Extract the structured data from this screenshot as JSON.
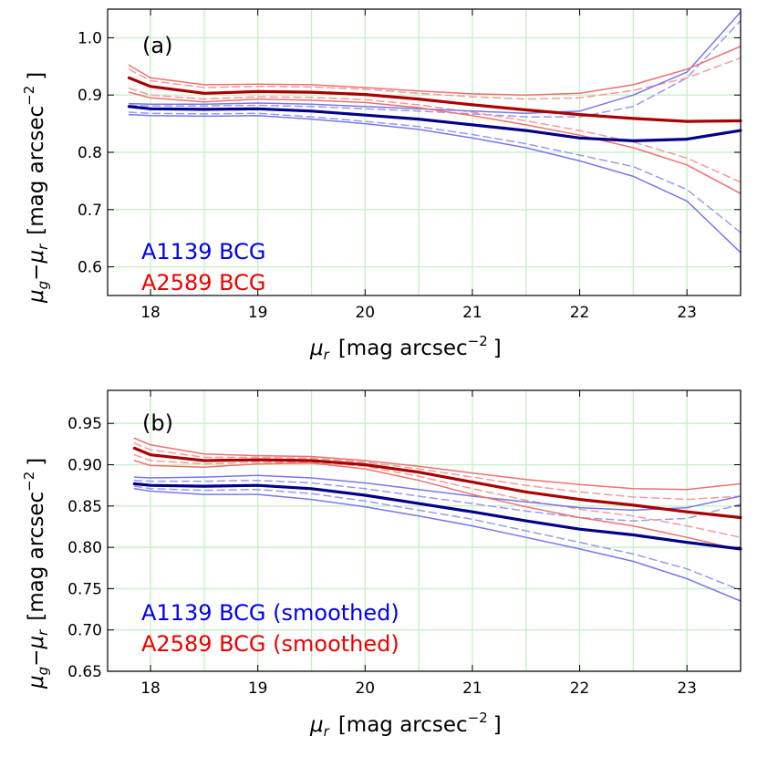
{
  "figure": {
    "charts": [
      {
        "panel_label": "(a)",
        "xlabel_math": "μ",
        "xlabel_sub": "r",
        "xlabel_text": "[mag arcsec",
        "xlabel_exp": "−2",
        "xlabel_close": "]",
        "ylabel_math_1": "μ",
        "ylabel_sub_1": "g",
        "ylabel_minus": "−",
        "ylabel_math_2": "μ",
        "ylabel_sub_2": "r",
        "ylabel_text": "[mag arcsec",
        "ylabel_exp": "−2",
        "ylabel_close": "]",
        "legend": [
          {
            "label": "A1139 BCG",
            "color": "#0000ee"
          },
          {
            "label": "A2589 BCG",
            "color": "#ee0000"
          }
        ]
      },
      {
        "panel_label": "(b)",
        "xlabel_math": "μ",
        "xlabel_sub": "r",
        "xlabel_text": "[mag arcsec",
        "xlabel_exp": "−2",
        "xlabel_close": "]",
        "ylabel_math_1": "μ",
        "ylabel_sub_1": "g",
        "ylabel_minus": "−",
        "ylabel_math_2": "μ",
        "ylabel_sub_2": "r",
        "ylabel_text": "[mag arcsec",
        "ylabel_exp": "−2",
        "ylabel_close": "]",
        "legend": [
          {
            "label": "A1139 BCG (smoothed)",
            "color": "#0000ee"
          },
          {
            "label": "A2589 BCG (smoothed)",
            "color": "#ee0000"
          }
        ]
      }
    ]
  },
  "chart_data": [
    {
      "type": "line",
      "title": "",
      "panel_label": "(a)",
      "xlabel": "μ_r [mag arcsec^-2]",
      "ylabel": "μ_g − μ_r [mag arcsec^-2]",
      "xlim": [
        17.6,
        23.5
      ],
      "ylim": [
        0.55,
        1.05
      ],
      "xticks": [
        18,
        19,
        20,
        21,
        22,
        23
      ],
      "yticks": [
        0.6,
        0.7,
        0.8,
        0.9,
        1.0
      ],
      "xtick_labels": [
        "18",
        "19",
        "20",
        "21",
        "22",
        "23"
      ],
      "ytick_labels": [
        "0.6",
        "0.7",
        "0.8",
        "0.9",
        "1.0"
      ],
      "grid": true,
      "legend_position": "lower-left",
      "series": [
        {
          "name": "A1139 BCG",
          "role": "main",
          "color": "#00008b",
          "style": "solid",
          "x": [
            17.8,
            18.0,
            18.5,
            19.0,
            19.5,
            20.0,
            20.5,
            21.0,
            21.5,
            22.0,
            22.5,
            23.0,
            23.5
          ],
          "y": [
            0.88,
            0.876,
            0.875,
            0.876,
            0.872,
            0.865,
            0.858,
            0.848,
            0.838,
            0.825,
            0.82,
            0.823,
            0.838
          ]
        },
        {
          "name": "A1139 BCG upper",
          "role": "band",
          "color": "#7777ee",
          "style": "solid",
          "x": [
            17.8,
            18.0,
            18.5,
            19.0,
            19.5,
            20.0,
            20.5,
            21.0,
            21.5,
            22.0,
            22.5,
            23.0,
            23.5
          ],
          "y": [
            0.885,
            0.884,
            0.884,
            0.886,
            0.884,
            0.88,
            0.876,
            0.872,
            0.868,
            0.872,
            0.9,
            0.94,
            1.045
          ]
        },
        {
          "name": "A1139 BCG lower",
          "role": "band",
          "color": "#7777ee",
          "style": "solid",
          "x": [
            17.8,
            18.0,
            18.5,
            19.0,
            19.5,
            20.0,
            20.5,
            21.0,
            21.5,
            22.0,
            22.5,
            23.0,
            23.5
          ],
          "y": [
            0.866,
            0.864,
            0.863,
            0.864,
            0.858,
            0.85,
            0.84,
            0.825,
            0.808,
            0.785,
            0.758,
            0.715,
            0.625
          ]
        },
        {
          "name": "A1139 BCG upper (dashed)",
          "role": "dashed",
          "color": "#9999ee",
          "style": "dashed",
          "x": [
            17.8,
            18.0,
            18.5,
            19.0,
            19.5,
            20.0,
            20.5,
            21.0,
            21.5,
            22.0,
            22.5,
            23.0,
            23.5
          ],
          "y": [
            0.882,
            0.881,
            0.881,
            0.882,
            0.88,
            0.876,
            0.872,
            0.867,
            0.862,
            0.862,
            0.88,
            0.93,
            1.03
          ]
        },
        {
          "name": "A1139 BCG lower (dashed)",
          "role": "dashed",
          "color": "#9999ee",
          "style": "dashed",
          "x": [
            17.8,
            18.0,
            18.5,
            19.0,
            19.5,
            20.0,
            20.5,
            21.0,
            21.5,
            22.0,
            22.5,
            23.0,
            23.5
          ],
          "y": [
            0.87,
            0.868,
            0.867,
            0.868,
            0.862,
            0.854,
            0.845,
            0.831,
            0.815,
            0.795,
            0.775,
            0.735,
            0.66
          ]
        },
        {
          "name": "A2589 BCG",
          "role": "main",
          "color": "#aa0000",
          "style": "solid",
          "x": [
            17.8,
            18.0,
            18.5,
            19.0,
            19.5,
            20.0,
            20.5,
            21.0,
            21.5,
            22.0,
            22.5,
            23.0,
            23.5
          ],
          "y": [
            0.93,
            0.915,
            0.903,
            0.906,
            0.905,
            0.901,
            0.893,
            0.883,
            0.874,
            0.866,
            0.859,
            0.854,
            0.855
          ]
        },
        {
          "name": "A2589 BCG upper",
          "role": "band",
          "color": "#f07070",
          "style": "solid",
          "x": [
            17.8,
            18.0,
            18.5,
            19.0,
            19.5,
            20.0,
            20.5,
            21.0,
            21.5,
            22.0,
            22.5,
            23.0,
            23.5
          ],
          "y": [
            0.952,
            0.93,
            0.918,
            0.919,
            0.918,
            0.913,
            0.907,
            0.902,
            0.9,
            0.903,
            0.918,
            0.945,
            0.985
          ]
        },
        {
          "name": "A2589 BCG lower",
          "role": "band",
          "color": "#f07070",
          "style": "solid",
          "x": [
            17.8,
            18.0,
            18.5,
            19.0,
            19.5,
            20.0,
            20.5,
            21.0,
            21.5,
            22.0,
            22.5,
            23.0,
            23.5
          ],
          "y": [
            0.905,
            0.895,
            0.888,
            0.893,
            0.891,
            0.887,
            0.878,
            0.864,
            0.848,
            0.83,
            0.808,
            0.778,
            0.728
          ]
        },
        {
          "name": "A2589 BCG upper (dashed)",
          "role": "dashed",
          "color": "#f59a9a",
          "style": "dashed",
          "x": [
            17.8,
            18.0,
            18.5,
            19.0,
            19.5,
            20.0,
            20.5,
            21.0,
            21.5,
            22.0,
            22.5,
            23.0,
            23.5
          ],
          "y": [
            0.945,
            0.925,
            0.913,
            0.915,
            0.914,
            0.91,
            0.903,
            0.897,
            0.893,
            0.895,
            0.908,
            0.93,
            0.965
          ]
        },
        {
          "name": "A2589 BCG lower (dashed)",
          "role": "dashed",
          "color": "#f59a9a",
          "style": "dashed",
          "x": [
            17.8,
            18.0,
            18.5,
            19.0,
            19.5,
            20.0,
            20.5,
            21.0,
            21.5,
            22.0,
            22.5,
            23.0,
            23.5
          ],
          "y": [
            0.912,
            0.9,
            0.893,
            0.897,
            0.896,
            0.892,
            0.883,
            0.87,
            0.855,
            0.838,
            0.818,
            0.79,
            0.748
          ]
        }
      ]
    },
    {
      "type": "line",
      "title": "",
      "panel_label": "(b)",
      "xlabel": "μ_r [mag arcsec^-2]",
      "ylabel": "μ_g − μ_r [mag arcsec^-2]",
      "xlim": [
        17.6,
        23.5
      ],
      "ylim": [
        0.65,
        0.99
      ],
      "xticks": [
        18,
        19,
        20,
        21,
        22,
        23
      ],
      "yticks": [
        0.65,
        0.7,
        0.75,
        0.8,
        0.85,
        0.9,
        0.95
      ],
      "xtick_labels": [
        "18",
        "19",
        "20",
        "21",
        "22",
        "23"
      ],
      "ytick_labels": [
        "0.65",
        "0.70",
        "0.75",
        "0.80",
        "0.85",
        "0.90",
        "0.95"
      ],
      "grid": true,
      "legend_position": "lower-left",
      "series": [
        {
          "name": "A1139 BCG (smoothed)",
          "role": "main",
          "color": "#00008b",
          "style": "solid",
          "x": [
            17.85,
            18.0,
            18.5,
            19.0,
            19.5,
            20.0,
            20.5,
            21.0,
            21.5,
            22.0,
            22.5,
            23.0,
            23.5
          ],
          "y": [
            0.877,
            0.875,
            0.874,
            0.875,
            0.871,
            0.863,
            0.853,
            0.843,
            0.832,
            0.822,
            0.815,
            0.806,
            0.798
          ]
        },
        {
          "name": "A1139 BCG (smoothed) upper",
          "role": "band",
          "color": "#7777ee",
          "style": "solid",
          "x": [
            17.85,
            18.0,
            18.5,
            19.0,
            19.5,
            20.0,
            20.5,
            21.0,
            21.5,
            22.0,
            22.5,
            23.0,
            23.5
          ],
          "y": [
            0.885,
            0.884,
            0.885,
            0.887,
            0.884,
            0.878,
            0.87,
            0.862,
            0.855,
            0.848,
            0.845,
            0.848,
            0.862
          ]
        },
        {
          "name": "A1139 BCG (smoothed) lower",
          "role": "band",
          "color": "#7777ee",
          "style": "solid",
          "x": [
            17.85,
            18.0,
            18.5,
            19.0,
            19.5,
            20.0,
            20.5,
            21.0,
            21.5,
            22.0,
            22.5,
            23.0,
            23.5
          ],
          "y": [
            0.871,
            0.868,
            0.864,
            0.864,
            0.858,
            0.849,
            0.838,
            0.826,
            0.812,
            0.798,
            0.783,
            0.762,
            0.735
          ]
        },
        {
          "name": "A1139 BCG (smoothed) upper (dashed)",
          "role": "dashed",
          "color": "#9999ee",
          "style": "dashed",
          "x": [
            17.85,
            18.0,
            18.5,
            19.0,
            19.5,
            20.0,
            20.5,
            21.0,
            21.5,
            22.0,
            22.5,
            23.0,
            23.5
          ],
          "y": [
            0.881,
            0.88,
            0.88,
            0.881,
            0.878,
            0.871,
            0.862,
            0.853,
            0.844,
            0.836,
            0.832,
            0.835,
            0.852
          ]
        },
        {
          "name": "A1139 BCG (smoothed) lower (dashed)",
          "role": "dashed",
          "color": "#9999ee",
          "style": "dashed",
          "x": [
            17.85,
            18.0,
            18.5,
            19.0,
            19.5,
            20.0,
            20.5,
            21.0,
            21.5,
            22.0,
            22.5,
            23.0,
            23.5
          ],
          "y": [
            0.874,
            0.871,
            0.869,
            0.87,
            0.865,
            0.856,
            0.845,
            0.834,
            0.82,
            0.806,
            0.792,
            0.774,
            0.748
          ]
        },
        {
          "name": "A2589 BCG (smoothed)",
          "role": "main",
          "color": "#aa0000",
          "style": "solid",
          "x": [
            17.85,
            18.0,
            18.5,
            19.0,
            19.5,
            20.0,
            20.5,
            21.0,
            21.5,
            22.0,
            22.5,
            23.0,
            23.5
          ],
          "y": [
            0.92,
            0.912,
            0.905,
            0.906,
            0.905,
            0.9,
            0.891,
            0.879,
            0.867,
            0.858,
            0.851,
            0.843,
            0.836
          ]
        },
        {
          "name": "A2589 BCG (smoothed) upper",
          "role": "band",
          "color": "#f07070",
          "style": "solid",
          "x": [
            17.85,
            18.0,
            18.5,
            19.0,
            19.5,
            20.0,
            20.5,
            21.0,
            21.5,
            22.0,
            22.5,
            23.0,
            23.5
          ],
          "y": [
            0.932,
            0.924,
            0.913,
            0.911,
            0.91,
            0.905,
            0.898,
            0.89,
            0.882,
            0.876,
            0.871,
            0.87,
            0.877
          ]
        },
        {
          "name": "A2589 BCG (smoothed) lower",
          "role": "band",
          "color": "#f07070",
          "style": "solid",
          "x": [
            17.85,
            18.0,
            18.5,
            19.0,
            19.5,
            20.0,
            20.5,
            21.0,
            21.5,
            22.0,
            22.5,
            23.0,
            23.5
          ],
          "y": [
            0.905,
            0.899,
            0.897,
            0.901,
            0.902,
            0.895,
            0.881,
            0.864,
            0.849,
            0.836,
            0.826,
            0.812,
            0.797
          ]
        },
        {
          "name": "A2589 BCG (smoothed) upper (dashed)",
          "role": "dashed",
          "color": "#f59a9a",
          "style": "dashed",
          "x": [
            17.85,
            18.0,
            18.5,
            19.0,
            19.5,
            20.0,
            20.5,
            21.0,
            21.5,
            22.0,
            22.5,
            23.0,
            23.5
          ],
          "y": [
            0.926,
            0.918,
            0.909,
            0.909,
            0.908,
            0.903,
            0.895,
            0.885,
            0.875,
            0.867,
            0.861,
            0.858,
            0.862
          ]
        },
        {
          "name": "A2589 BCG (smoothed) lower (dashed)",
          "role": "dashed",
          "color": "#f59a9a",
          "style": "dashed",
          "x": [
            17.85,
            18.0,
            18.5,
            19.0,
            19.5,
            20.0,
            20.5,
            21.0,
            21.5,
            22.0,
            22.5,
            23.0,
            23.5
          ],
          "y": [
            0.912,
            0.905,
            0.901,
            0.903,
            0.903,
            0.898,
            0.886,
            0.871,
            0.857,
            0.846,
            0.838,
            0.826,
            0.812
          ]
        }
      ]
    }
  ]
}
